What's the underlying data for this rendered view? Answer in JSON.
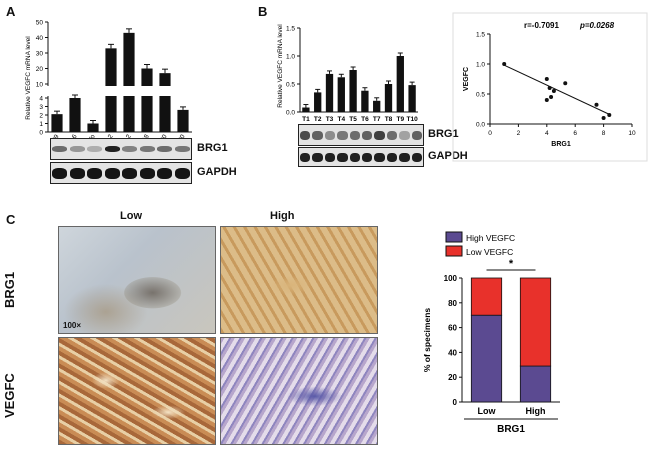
{
  "panels": {
    "a": {
      "letter": "A"
    },
    "b": {
      "letter": "B"
    },
    "c": {
      "letter": "C"
    }
  },
  "blot_labels": {
    "brg1": "BRG1",
    "gapdh": "GAPDH"
  },
  "ihc": {
    "col_low": "Low",
    "col_high": "High",
    "row_brg1": "BRG1",
    "row_vegfc": "VEGFC",
    "magnification": "100×"
  },
  "colors": {
    "bar": "#111111",
    "high_vegfc": "#5b4a91",
    "low_vegfc": "#e8312b"
  },
  "chart_data": [
    {
      "type": "bar",
      "panel": "A",
      "categories": [
        "HT29",
        "HCT116",
        "LoVo",
        "Caco-2",
        "KM12",
        "SW48",
        "SW480",
        "SW620"
      ],
      "values": [
        2.1,
        4.0,
        1.0,
        33,
        43,
        20,
        17,
        2.6
      ],
      "ylabel": "Relative VEGFC mRNA level",
      "y_break": {
        "lower": [
          0,
          4
        ],
        "upper": [
          10,
          50
        ]
      },
      "lower_ticks": [
        0,
        1,
        2,
        3,
        4
      ],
      "upper_ticks": [
        10,
        20,
        30,
        40,
        50
      ]
    },
    {
      "type": "bar",
      "panel": "B",
      "categories": [
        "T1",
        "T2",
        "T3",
        "T4",
        "T5",
        "T6",
        "T7",
        "T8",
        "T9",
        "T10"
      ],
      "values": [
        0.08,
        0.35,
        0.68,
        0.62,
        0.75,
        0.38,
        0.2,
        0.5,
        1.0,
        0.48
      ],
      "ylabel": "Relative VEGFC mRNA level",
      "ylim": [
        0,
        1.5
      ],
      "yticks": [
        "0.0",
        "0.5",
        "1.0",
        "1.5"
      ]
    },
    {
      "type": "scatter",
      "panel": "B",
      "x": [
        1.0,
        4.0,
        4.2,
        4.5,
        4.3,
        5.3,
        4.0,
        7.5,
        8.0,
        8.4
      ],
      "y": [
        1.0,
        0.75,
        0.6,
        0.55,
        0.45,
        0.68,
        0.4,
        0.32,
        0.1,
        0.15
      ],
      "fit_line": {
        "x": [
          1,
          8.5
        ],
        "y": [
          0.98,
          0.15
        ]
      },
      "xlabel": "BRG1",
      "ylabel": "VEGFC",
      "annotation_r": "r=-0.7091",
      "annotation_p": "p=0.0268",
      "xlim": [
        0,
        10
      ],
      "ylim": [
        0,
        1.5
      ],
      "xticks": [
        "0",
        "2",
        "4",
        "6",
        "8",
        "10"
      ],
      "yticks": [
        "0.0",
        "0.5",
        "1.0",
        "1.5"
      ]
    },
    {
      "type": "bar",
      "subtype": "stacked-percent",
      "panel": "C",
      "categories": [
        "Low",
        "High"
      ],
      "series": [
        {
          "name": "High VEGFC",
          "values": [
            70,
            29
          ]
        },
        {
          "name": "Low VEGFC",
          "values": [
            30,
            71
          ]
        }
      ],
      "xlabel": "BRG1",
      "ylabel": "% of specimens",
      "ylim": [
        0,
        100
      ],
      "yticks": [
        "0",
        "20",
        "40",
        "60",
        "80",
        "100"
      ],
      "significance": "*",
      "legend_position": "top"
    }
  ]
}
